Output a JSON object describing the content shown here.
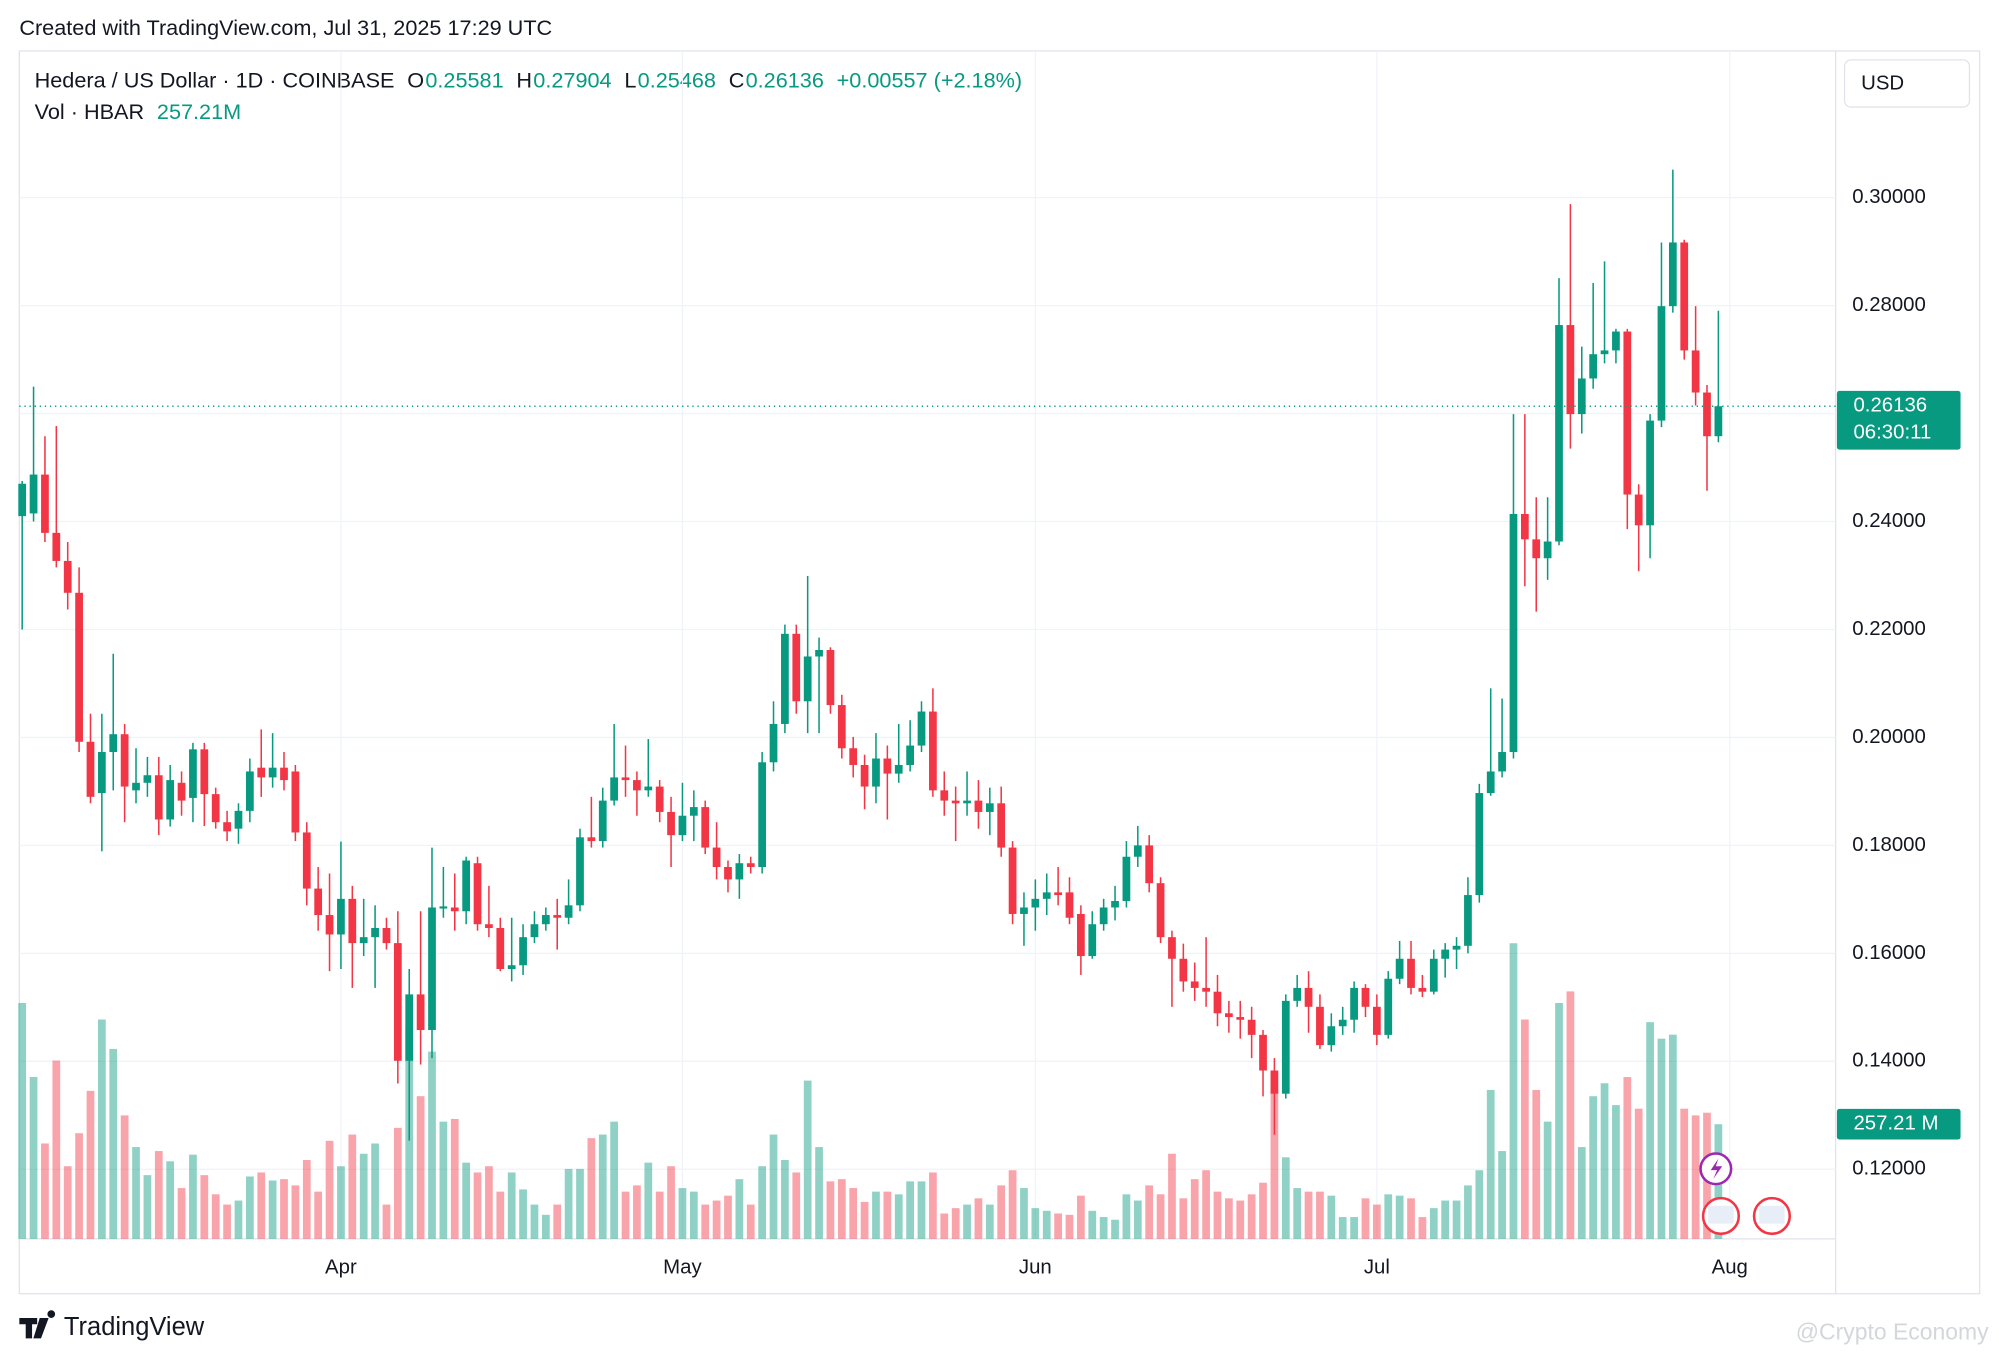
{
  "chart_data": {
    "type": "candlestick",
    "created": "Created with TradingView.com, Jul 31, 2025 17:29 UTC",
    "symbol": "Hedera / US Dollar · 1D · COINBASE",
    "ohlc_header": [
      {
        "key": "O",
        "value": "0.25581"
      },
      {
        "key": "H",
        "value": "0.27904"
      },
      {
        "key": "L",
        "value": "0.25468"
      },
      {
        "key": "C",
        "value": "0.26136"
      }
    ],
    "change": "+0.00557 (+2.18%)",
    "volume_title": "Vol · HBAR",
    "volume_header": "257.21M",
    "currency": "USD",
    "price_tag": "0.26136",
    "countdown": "06:30:11",
    "volume_tag": "257.21 M",
    "brand": "TradingView",
    "watermark": "@Crypto Economy",
    "up_color": "#089981",
    "down_color": "#f23645",
    "grid": true,
    "xlim": [
      -0.25,
      159.3
    ],
    "xticks": [
      {
        "value": 28,
        "label": "Apr"
      },
      {
        "value": 58,
        "label": "May"
      },
      {
        "value": 89,
        "label": "Jun"
      },
      {
        "value": 119,
        "label": "Jul"
      },
      {
        "value": 150,
        "label": "Aug"
      }
    ],
    "ylim": [
      0.1071,
      0.3267
    ],
    "yticks": [
      {
        "value": 0.12,
        "label": "0.12000"
      },
      {
        "value": 0.14,
        "label": "0.14000"
      },
      {
        "value": 0.16,
        "label": "0.16000"
      },
      {
        "value": 0.18,
        "label": "0.18000"
      },
      {
        "value": 0.2,
        "label": "0.20000"
      },
      {
        "value": 0.22,
        "label": "0.22000"
      },
      {
        "value": 0.24,
        "label": "0.24000"
      },
      {
        "value": 0.26,
        "label": "0.26000"
      },
      {
        "value": 0.28,
        "label": "0.28000"
      },
      {
        "value": 0.3,
        "label": "0.30000"
      }
    ],
    "volume_lim": [
      0,
      2658
    ],
    "open": [
      0.241,
      0.2415,
      0.2487,
      0.2379,
      0.2327,
      0.2268,
      0.1992,
      0.1897,
      0.1973,
      0.2006,
      0.1902,
      0.1916,
      0.193,
      0.1848,
      0.1916,
      0.1888,
      0.1978,
      0.1895,
      0.1843,
      0.1831,
      0.1864,
      0.1944,
      0.1926,
      0.1944,
      0.1937,
      0.1824,
      0.172,
      0.1671,
      0.1635,
      0.1701,
      0.1619,
      0.163,
      0.1647,
      0.1619,
      0.1401,
      0.1524,
      0.1458,
      0.1683,
      0.1685,
      0.1678,
      0.1767,
      0.1654,
      0.1647,
      0.1571,
      0.1578,
      0.163,
      0.1654,
      0.1671,
      0.1666,
      0.1689,
      0.1815,
      0.1808,
      0.1883,
      0.1926,
      0.1921,
      0.1902,
      0.1909,
      0.1862,
      0.1819,
      0.1855,
      0.1871,
      0.1796,
      0.176,
      0.1737,
      0.1767,
      0.176,
      0.1954,
      0.2025,
      0.2192,
      0.2067,
      0.215,
      0.2162,
      0.206,
      0.198,
      0.1949,
      0.1909,
      0.1961,
      0.1933,
      0.1949,
      0.1985,
      0.2048,
      0.1902,
      0.1883,
      0.1878,
      0.1883,
      0.1862,
      0.1878,
      0.1796,
      0.1673,
      0.1685,
      0.1701,
      0.1713,
      0.1713,
      0.1673,
      0.1595,
      0.1654,
      0.1685,
      0.1697,
      0.1779,
      0.18,
      0.173,
      0.163,
      0.159,
      0.1548,
      0.1536,
      0.1529,
      0.1489,
      0.1482,
      0.1477,
      0.1449,
      0.1383,
      0.134,
      0.1512,
      0.1536,
      0.1501,
      0.143,
      0.1465,
      0.1477,
      0.1536,
      0.1501,
      0.1449,
      0.1553,
      0.159,
      0.1536,
      0.1529,
      0.159,
      0.1607,
      0.1614,
      0.1708,
      0.1897,
      0.1937,
      0.1973,
      0.2414,
      0.2367,
      0.2332,
      0.2363,
      0.2764,
      0.2599,
      0.2665,
      0.271,
      0.2717,
      0.2752,
      0.245,
      0.2393,
      0.2587,
      0.2799,
      0.2917,
      0.2717,
      0.2639,
      0.25581
    ],
    "high": [
      0.2475,
      0.265,
      0.2558,
      0.2577,
      0.2362,
      0.2315,
      0.2044,
      0.2044,
      0.2155,
      0.2025,
      0.198,
      0.1964,
      0.1964,
      0.1949,
      0.1937,
      0.199,
      0.199,
      0.1907,
      0.1864,
      0.1878,
      0.1961,
      0.2015,
      0.2008,
      0.1973,
      0.1949,
      0.1843,
      0.176,
      0.1748,
      0.1807,
      0.1725,
      0.1701,
      0.1689,
      0.1666,
      0.1678,
      0.1571,
      0.1678,
      0.1796,
      0.176,
      0.1748,
      0.1779,
      0.1779,
      0.1725,
      0.1666,
      0.1666,
      0.1654,
      0.1678,
      0.1685,
      0.1701,
      0.1737,
      0.1831,
      0.189,
      0.1907,
      0.2025,
      0.1985,
      0.1937,
      0.1997,
      0.1921,
      0.189,
      0.1916,
      0.1902,
      0.1883,
      0.1843,
      0.1772,
      0.1784,
      0.1779,
      0.1973,
      0.2067,
      0.2209,
      0.2209,
      0.2299,
      0.2185,
      0.2167,
      0.2079,
      0.2001,
      0.1968,
      0.2008,
      0.1985,
      0.2025,
      0.2032,
      0.2067,
      0.2091,
      0.1937,
      0.1909,
      0.1937,
      0.1921,
      0.1907,
      0.1909,
      0.1808,
      0.1713,
      0.1737,
      0.1748,
      0.176,
      0.1741,
      0.1689,
      0.1678,
      0.1701,
      0.1725,
      0.1808,
      0.1836,
      0.1819,
      0.1741,
      0.1642,
      0.1618,
      0.1583,
      0.163,
      0.156,
      0.1512,
      0.1512,
      0.1501,
      0.1458,
      0.1406,
      0.1524,
      0.156,
      0.1567,
      0.1524,
      0.1489,
      0.1501,
      0.1548,
      0.1543,
      0.1524,
      0.1567,
      0.1623,
      0.1623,
      0.156,
      0.1607,
      0.1619,
      0.163,
      0.1741,
      0.1914,
      0.2091,
      0.2072,
      0.2599,
      0.2599,
      0.2445,
      0.2445,
      0.2851,
      0.2988,
      0.2724,
      0.2842,
      0.2882,
      0.2757,
      0.2757,
      0.2469,
      0.2599,
      0.2917,
      0.3052,
      0.2922,
      0.2799,
      0.2653,
      0.27904
    ],
    "low": [
      0.22,
      0.24,
      0.2362,
      0.2315,
      0.2237,
      0.1973,
      0.1878,
      0.1789,
      0.1902,
      0.1843,
      0.1878,
      0.189,
      0.1819,
      0.1835,
      0.1855,
      0.1843,
      0.1836,
      0.1831,
      0.1808,
      0.1803,
      0.1843,
      0.189,
      0.1907,
      0.1902,
      0.1808,
      0.1689,
      0.1642,
      0.1567,
      0.1571,
      0.1536,
      0.1595,
      0.1536,
      0.1607,
      0.1359,
      0.1253,
      0.1394,
      0.1406,
      0.1666,
      0.1642,
      0.1654,
      0.1642,
      0.163,
      0.1567,
      0.1548,
      0.156,
      0.1619,
      0.1642,
      0.1607,
      0.1654,
      0.1678,
      0.1796,
      0.1796,
      0.1874,
      0.189,
      0.1855,
      0.189,
      0.1843,
      0.176,
      0.1808,
      0.1808,
      0.1784,
      0.1737,
      0.1713,
      0.1701,
      0.1748,
      0.1748,
      0.1937,
      0.2008,
      0.2044,
      0.2008,
      0.2008,
      0.2044,
      0.1961,
      0.1926,
      0.1867,
      0.1878,
      0.1848,
      0.1916,
      0.1937,
      0.1973,
      0.189,
      0.1855,
      0.1808,
      0.1855,
      0.1831,
      0.1819,
      0.1779,
      0.1654,
      0.1614,
      0.1642,
      0.1671,
      0.1689,
      0.1654,
      0.156,
      0.159,
      0.1642,
      0.1661,
      0.1685,
      0.176,
      0.1713,
      0.1619,
      0.1501,
      0.1529,
      0.1512,
      0.1501,
      0.1465,
      0.1453,
      0.1442,
      0.1406,
      0.1335,
      0.1264,
      0.1331,
      0.1501,
      0.1453,
      0.1423,
      0.1418,
      0.1449,
      0.1453,
      0.1482,
      0.143,
      0.1442,
      0.1543,
      0.1524,
      0.1519,
      0.1524,
      0.1555,
      0.1571,
      0.16,
      0.1694,
      0.1892,
      0.1926,
      0.1961,
      0.228,
      0.2233,
      0.2292,
      0.2356,
      0.2535,
      0.2563,
      0.2646,
      0.2693,
      0.2693,
      0.2386,
      0.2308,
      0.2332,
      0.2575,
      0.2787,
      0.27,
      0.2615,
      0.2457,
      0.25468
    ],
    "close": [
      0.247,
      0.2487,
      0.2379,
      0.2327,
      0.2268,
      0.1992,
      0.189,
      0.1973,
      0.2006,
      0.1909,
      0.1916,
      0.193,
      0.1848,
      0.1921,
      0.1883,
      0.1978,
      0.1895,
      0.1843,
      0.1826,
      0.1864,
      0.1937,
      0.1926,
      0.1944,
      0.1921,
      0.1824,
      0.172,
      0.1671,
      0.1635,
      0.1701,
      0.1619,
      0.163,
      0.1647,
      0.1619,
      0.1401,
      0.1524,
      0.1458,
      0.1685,
      0.1687,
      0.1678,
      0.1772,
      0.1654,
      0.1647,
      0.1571,
      0.1578,
      0.163,
      0.1654,
      0.1671,
      0.1666,
      0.1689,
      0.1815,
      0.1808,
      0.1883,
      0.1926,
      0.1921,
      0.1902,
      0.1909,
      0.1862,
      0.1819,
      0.1855,
      0.1871,
      0.1796,
      0.176,
      0.1737,
      0.1767,
      0.176,
      0.1954,
      0.2025,
      0.2192,
      0.2067,
      0.215,
      0.2162,
      0.206,
      0.198,
      0.1949,
      0.1909,
      0.1961,
      0.1933,
      0.1949,
      0.1985,
      0.2048,
      0.1902,
      0.1883,
      0.1878,
      0.1883,
      0.1862,
      0.1878,
      0.1796,
      0.1673,
      0.1685,
      0.1701,
      0.1713,
      0.1708,
      0.1666,
      0.1595,
      0.1654,
      0.1685,
      0.1697,
      0.1779,
      0.18,
      0.173,
      0.163,
      0.159,
      0.1548,
      0.1536,
      0.1529,
      0.1489,
      0.1482,
      0.1477,
      0.1449,
      0.1383,
      0.134,
      0.1512,
      0.1536,
      0.1501,
      0.143,
      0.1465,
      0.1477,
      0.1536,
      0.1501,
      0.1449,
      0.1553,
      0.159,
      0.1536,
      0.1529,
      0.159,
      0.1607,
      0.1614,
      0.1708,
      0.1897,
      0.1937,
      0.1973,
      0.2414,
      0.2367,
      0.2332,
      0.2363,
      0.2764,
      0.2599,
      0.2665,
      0.271,
      0.2717,
      0.2752,
      0.245,
      0.2393,
      0.2587,
      0.2799,
      0.2917,
      0.2717,
      0.2639,
      0.2558,
      0.26136
    ],
    "volume": [
      529,
      363,
      214,
      400,
      163,
      237,
      332,
      492,
      426,
      277,
      206,
      143,
      197,
      174,
      114,
      189,
      143,
      100,
      77,
      86,
      140,
      149,
      131,
      134,
      120,
      177,
      106,
      220,
      163,
      234,
      191,
      214,
      77,
      249,
      477,
      320,
      420,
      263,
      269,
      171,
      149,
      163,
      106,
      149,
      111,
      77,
      54,
      77,
      157,
      157,
      226,
      234,
      263,
      106,
      120,
      171,
      106,
      163,
      114,
      106,
      77,
      86,
      97,
      134,
      77,
      163,
      234,
      177,
      149,
      355,
      206,
      129,
      134,
      114,
      83,
      106,
      106,
      100,
      129,
      129,
      149,
      57,
      69,
      77,
      91,
      77,
      120,
      154,
      114,
      69,
      63,
      57,
      54,
      97,
      63,
      49,
      43,
      100,
      86,
      120,
      100,
      191,
      91,
      134,
      154,
      106,
      91,
      86,
      100,
      126,
      334,
      183,
      114,
      106,
      106,
      97,
      49,
      49,
      91,
      77,
      100,
      97,
      91,
      49,
      69,
      86,
      86,
      120,
      154,
      334,
      197,
      663,
      492,
      334,
      263,
      529,
      555,
      206,
      320,
      349,
      300,
      363,
      292,
      486,
      449,
      458,
      292,
      277,
      283,
      257.21
    ]
  }
}
